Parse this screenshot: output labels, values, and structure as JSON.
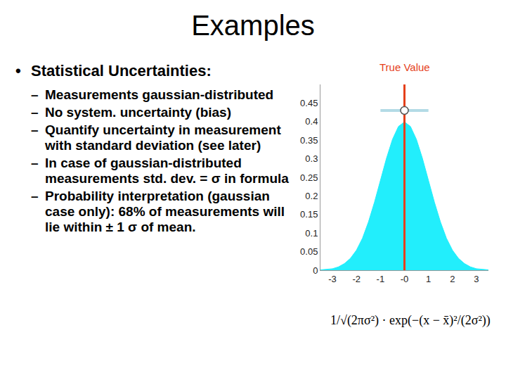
{
  "slide": {
    "title": "Examples",
    "heading": "Statistical Uncertainties:",
    "bullets": [
      "Measurements gaussian-distributed",
      "No system. uncertainty (bias)",
      "Quantify uncertainty in measurement with standard deviation (see later)",
      "In case of gaussian-distributed measurements std. dev. = σ in formula",
      "Probability interpretation (gaussian case only): 68% of measurements will lie within ± 1 σ of mean."
    ]
  },
  "chart_data": {
    "type": "area",
    "x": [
      -3.5,
      -3.25,
      -3,
      -2.75,
      -2.5,
      -2.25,
      -2,
      -1.75,
      -1.5,
      -1.25,
      -1,
      -0.75,
      -0.5,
      -0.25,
      0,
      0.25,
      0.5,
      0.75,
      1,
      1.25,
      1.5,
      1.75,
      2,
      2.25,
      2.5,
      2.75,
      3,
      3.25,
      3.5
    ],
    "values": [
      0.001,
      0.002,
      0.004,
      0.009,
      0.018,
      0.032,
      0.054,
      0.086,
      0.13,
      0.183,
      0.242,
      0.301,
      0.352,
      0.387,
      0.399,
      0.387,
      0.352,
      0.301,
      0.242,
      0.183,
      0.13,
      0.086,
      0.054,
      0.032,
      0.018,
      0.009,
      0.004,
      0.002,
      0.001
    ],
    "color": "#22eefc",
    "xlim": [
      -3.5,
      3.5
    ],
    "xticks": [
      -3,
      -2,
      -1,
      {
        "value": 0,
        "label": "-0"
      },
      1,
      2,
      3
    ],
    "ylim": [
      0,
      0.5
    ],
    "yticks": [
      0,
      0.05,
      0.1,
      0.15,
      0.2,
      0.25,
      0.3,
      0.35,
      0.4,
      0.45
    ],
    "grid": false,
    "true_value": {
      "label": "True Value",
      "x": 0,
      "color": "#e5401b"
    },
    "measurement": {
      "x": 0,
      "y": 0.43,
      "error": 1,
      "color": "#b3dbe6"
    },
    "formula": "1/√(2πσ²) · exp(−(x − x̄)²/(2σ²))"
  }
}
